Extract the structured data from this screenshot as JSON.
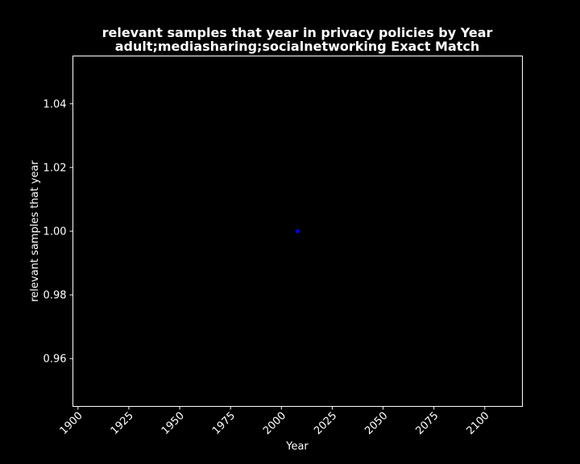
{
  "chart_data": {
    "type": "scatter",
    "title": "relevant samples that year in privacy policies by Year",
    "subtitle": "adult;mediasharing;socialnetworking Exact Match",
    "xlabel": "Year",
    "ylabel": "relevant samples that year",
    "xlim": [
      1897.5,
      2118.5
    ],
    "ylim": [
      0.945,
      1.055
    ],
    "x_ticks": [
      1900,
      1925,
      1950,
      1975,
      2000,
      2025,
      2050,
      2075,
      2100
    ],
    "x_tick_labels": [
      "1900",
      "1925",
      "1950",
      "1975",
      "2000",
      "2025",
      "2050",
      "2075",
      "2100"
    ],
    "y_ticks": [
      0.96,
      0.98,
      1.0,
      1.02,
      1.04
    ],
    "y_tick_labels": [
      "0.96",
      "0.98",
      "1.00",
      "1.02",
      "1.04"
    ],
    "points": [
      {
        "x": 2008,
        "y": 1.0
      }
    ],
    "grid": false,
    "marker_color": "#0000ff",
    "background_color": "#000000",
    "foreground_color": "#ffffff"
  }
}
